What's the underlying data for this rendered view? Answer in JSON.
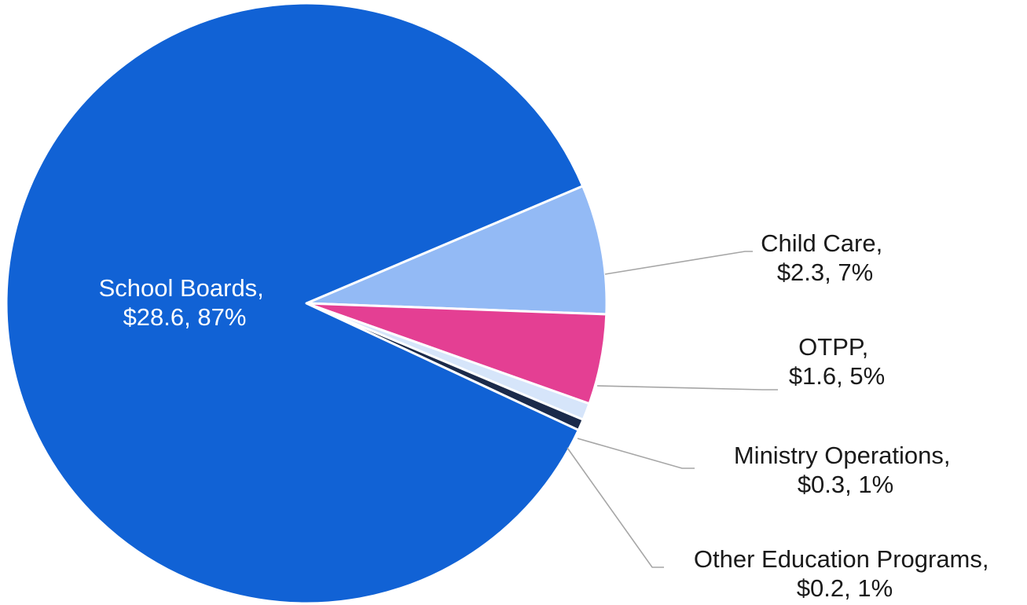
{
  "chart_data": {
    "type": "pie",
    "title": "",
    "slices": [
      {
        "label": "School Boards,",
        "value_text": "$28.6, 87%",
        "value": 28.6,
        "percent": 87,
        "color": "#1162D5",
        "label_color": "#ffffff"
      },
      {
        "label": "Child Care,",
        "value_text": "$2.3, 7%",
        "value": 2.3,
        "percent": 7,
        "color": "#93BAF5",
        "label_color": "#1a1a1a"
      },
      {
        "label": "OTPP,",
        "value_text": "$1.6, 5%",
        "value": 1.6,
        "percent": 5,
        "color": "#E43F93",
        "label_color": "#1a1a1a"
      },
      {
        "label": "Ministry Operations,",
        "value_text": "$0.3, 1%",
        "value": 0.3,
        "percent": 1,
        "color": "#D6E5FA",
        "label_color": "#1a1a1a"
      },
      {
        "label": "Other Education Programs,",
        "value_text": "$0.2, 1%",
        "value": 0.2,
        "percent": 1,
        "color": "#1B2A4A",
        "label_color": "#1a1a1a"
      }
    ],
    "leader_line_color": "#A6A6A6",
    "separator_color": "#ffffff"
  }
}
